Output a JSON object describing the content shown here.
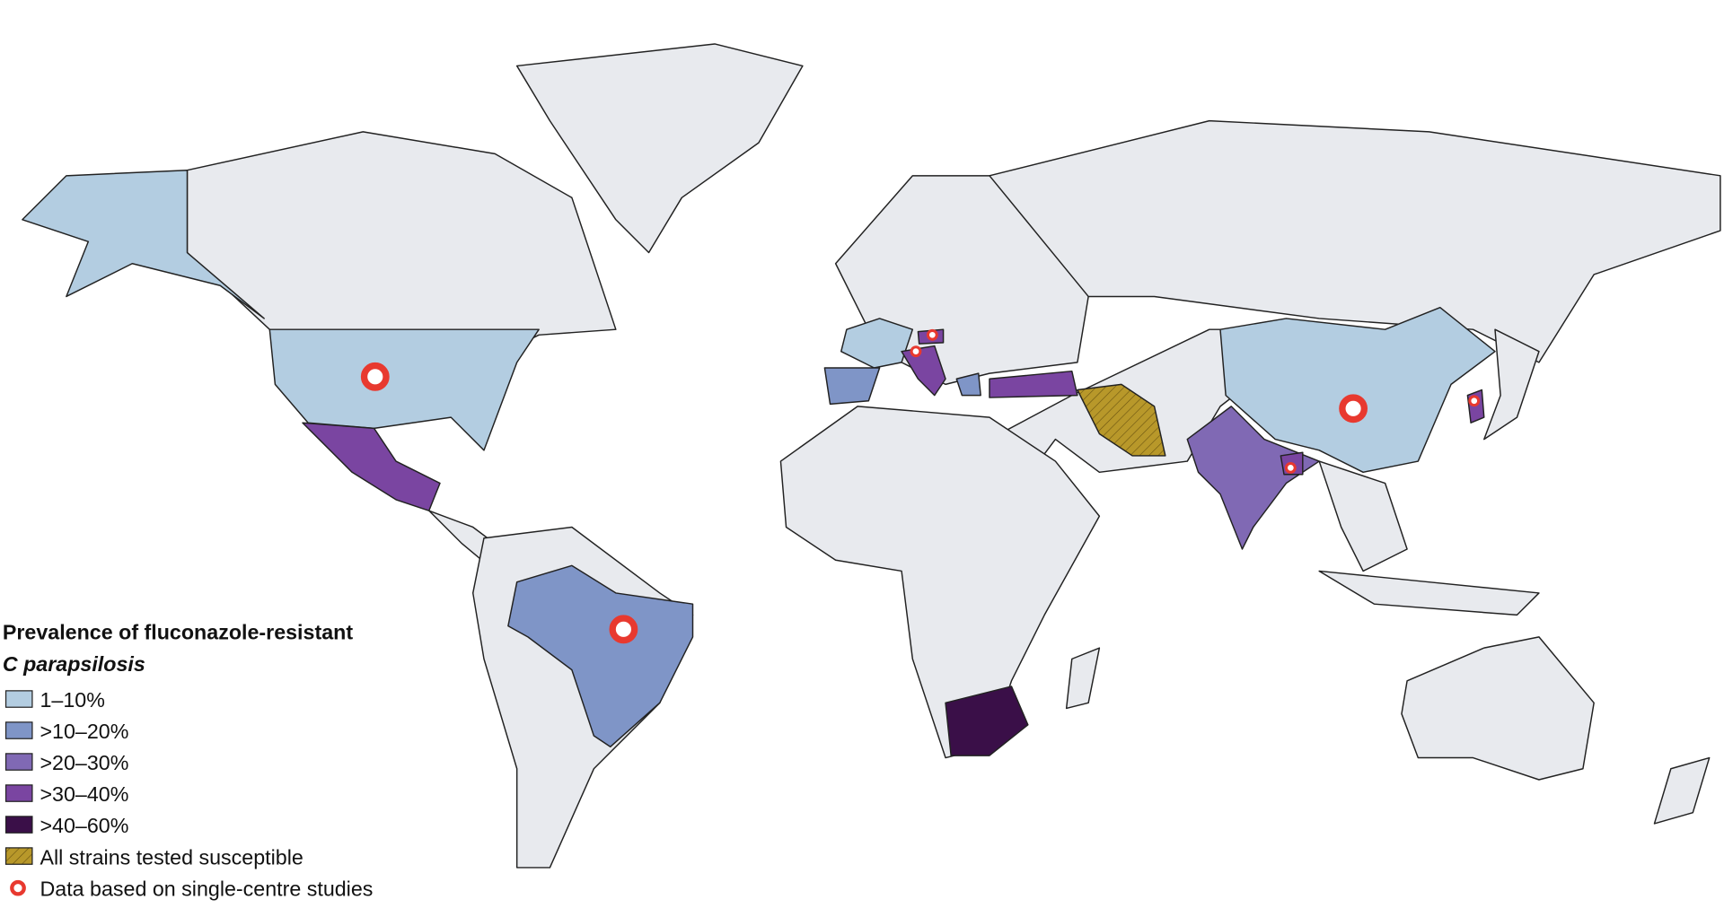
{
  "legend": {
    "title": "Prevalence of fluconazole-resistant",
    "subtitle": "C parapsilosis",
    "items": [
      {
        "label": "1–10%",
        "color": "#b3cde1"
      },
      {
        "label": ">10–20%",
        "color": "#7f95c7"
      },
      {
        "label": ">20–30%",
        "color": "#8069b4"
      },
      {
        "label": ">30–40%",
        "color": "#7a45a1"
      },
      {
        "label": ">40–60%",
        "color": "#3a0f48"
      },
      {
        "label": "All strains tested susceptible",
        "color": "#b8982a"
      }
    ],
    "marker_label": "Data based on single-centre studies",
    "marker_color": "#e8392f"
  }
}
